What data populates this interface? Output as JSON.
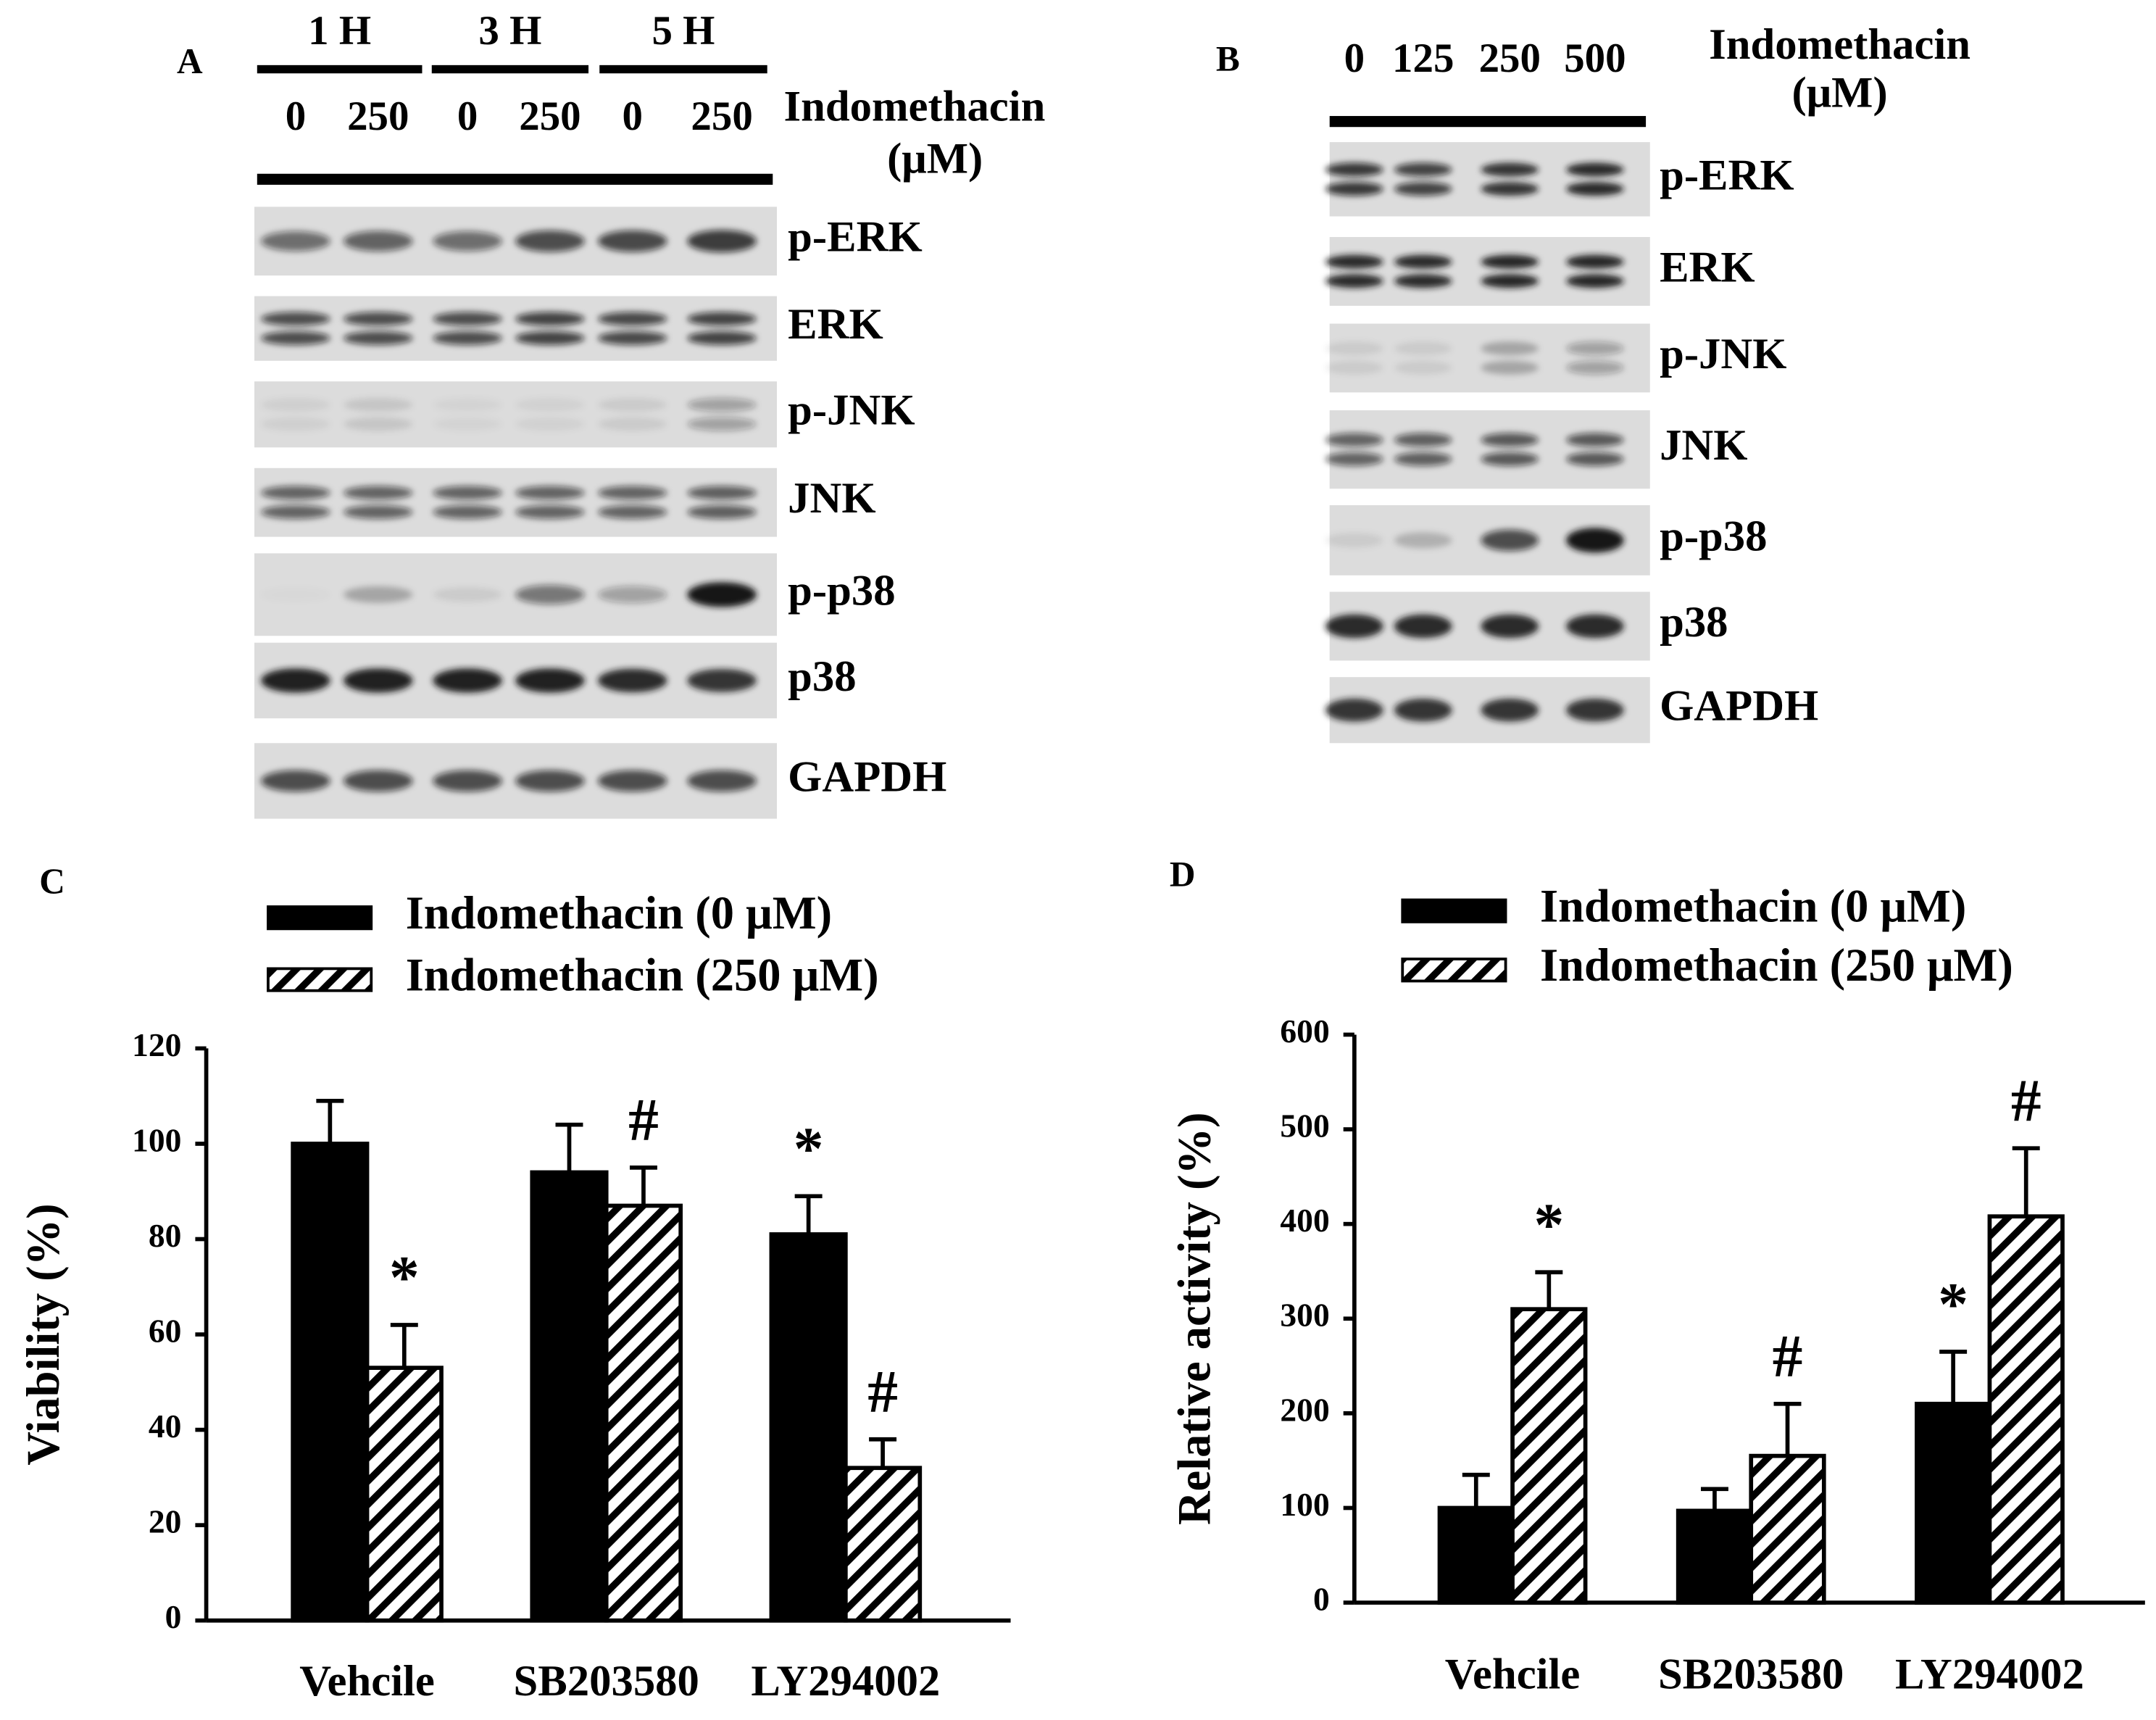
{
  "blots": [
    {
      "panel": "A",
      "time_labels": [
        "1 H",
        "3 H",
        "5 H"
      ],
      "dose_labels": [
        "0",
        "250",
        "0",
        "250",
        "0",
        "250"
      ],
      "treatment": "Indomethacin",
      "unit": "(μM)",
      "rows": [
        "p-ERK",
        "ERK",
        "p-JNK",
        "JNK",
        "p-p38",
        "p38",
        "GAPDH"
      ]
    },
    {
      "panel": "B",
      "dose_labels": [
        "0",
        "125",
        "250",
        "500"
      ],
      "treatment": "Indomethacin",
      "unit": "(μM)",
      "rows": [
        "p-ERK",
        "ERK",
        "p-JNK",
        "JNK",
        "p-p38",
        "p38",
        "GAPDH"
      ]
    }
  ],
  "chart_data": [
    {
      "type": "bar",
      "panel": "C",
      "y_label": "Viability (%)",
      "categories": [
        "Vehcile",
        "SB203580",
        "LY294002"
      ],
      "series": [
        {
          "name": "Indomethacin (0 μM)",
          "color": "#000000",
          "pattern": "solid",
          "values": [
            100,
            94,
            81
          ],
          "errors": [
            9,
            10,
            8
          ],
          "annotations": [
            null,
            null,
            "*"
          ]
        },
        {
          "name": "Indomethacin (250 μM)",
          "color": "#000000",
          "pattern": "hatch",
          "values": [
            53,
            87,
            32
          ],
          "errors": [
            9,
            8,
            6
          ],
          "annotations": [
            "*",
            "#",
            "#"
          ]
        }
      ],
      "ylim": [
        0,
        120
      ],
      "yticks": [
        0,
        20,
        40,
        60,
        80,
        100,
        120
      ]
    },
    {
      "type": "bar",
      "panel": "D",
      "y_label": "Relative activity (%)",
      "categories": [
        "Vehcile",
        "SB203580",
        "LY294002"
      ],
      "series": [
        {
          "name": "Indomethacin (0 μM)",
          "color": "#000000",
          "pattern": "solid",
          "values": [
            100,
            97,
            210
          ],
          "errors": [
            35,
            23,
            55
          ],
          "annotations": [
            null,
            null,
            "*"
          ]
        },
        {
          "name": "Indomethacin (250 μM)",
          "color": "#000000",
          "pattern": "hatch",
          "values": [
            310,
            155,
            408
          ],
          "errors": [
            39,
            55,
            72
          ],
          "annotations": [
            "*",
            "#",
            "#"
          ]
        }
      ],
      "ylim": [
        0,
        600
      ],
      "yticks": [
        0,
        100,
        200,
        300,
        400,
        500,
        600
      ]
    }
  ]
}
